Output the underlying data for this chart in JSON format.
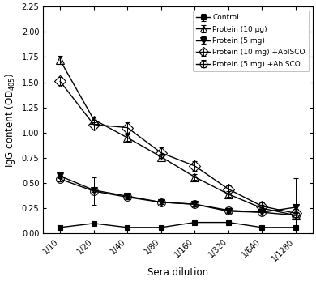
{
  "x_labels": [
    "1/10",
    "1/20",
    "1/40",
    "1/80",
    "1/160",
    "1/320",
    "1/640",
    "1/1280"
  ],
  "x_values": [
    1,
    2,
    3,
    4,
    5,
    6,
    7,
    8
  ],
  "series": {
    "Control": {
      "y": [
        0.06,
        0.1,
        0.06,
        0.06,
        0.11,
        0.11,
        0.06,
        0.06
      ],
      "yerr": [
        0.01,
        0.01,
        0.01,
        0.01,
        0.01,
        0.01,
        0.01,
        0.01
      ],
      "marker": "s",
      "markersize": 5,
      "color": "#000000",
      "fillstyle": "full",
      "linestyle": "-",
      "linewidth": 1.0,
      "label": "Control"
    },
    "Protein10ug": {
      "y": [
        1.72,
        1.13,
        0.95,
        0.76,
        0.56,
        0.39,
        0.25,
        0.18
      ],
      "yerr": [
        0.04,
        0.03,
        0.03,
        0.03,
        0.03,
        0.03,
        0.03,
        0.03
      ],
      "marker": "^",
      "markersize": 7,
      "color": "#000000",
      "fillstyle": "none",
      "linestyle": "-",
      "linewidth": 1.0,
      "label": "Protein (10 μg)"
    },
    "Protein5mg": {
      "y": [
        0.57,
        0.43,
        0.37,
        0.31,
        0.29,
        0.22,
        0.21,
        0.26
      ],
      "yerr": [
        0.02,
        0.02,
        0.02,
        0.02,
        0.02,
        0.02,
        0.02,
        0.02
      ],
      "marker": "v",
      "markersize": 6,
      "color": "#000000",
      "fillstyle": "full",
      "linestyle": "-",
      "linewidth": 1.0,
      "label": "Protein (5 mg)"
    },
    "Protein10mgAbISCO": {
      "y": [
        1.51,
        1.08,
        1.05,
        0.8,
        0.67,
        0.44,
        0.27,
        0.2
      ],
      "yerr": [
        0.04,
        0.05,
        0.05,
        0.05,
        0.05,
        0.04,
        0.04,
        0.35
      ],
      "marker": "D",
      "markersize": 7,
      "color": "#000000",
      "fillstyle": "none",
      "linestyle": "-",
      "linewidth": 1.0,
      "label": "Protein (10 mg) +AbISCO"
    },
    "Protein5mgAbISCO": {
      "y": [
        0.54,
        0.42,
        0.36,
        0.31,
        0.29,
        0.23,
        0.21,
        0.18
      ],
      "yerr": [
        0.02,
        0.14,
        0.02,
        0.02,
        0.02,
        0.02,
        0.02,
        0.02
      ],
      "marker": "o",
      "markersize": 7,
      "color": "#000000",
      "fillstyle": "none",
      "linestyle": "-",
      "linewidth": 1.0,
      "label": "Protein (5 mg) +AbISCO"
    }
  },
  "ylabel": "IgG content (OD$_{405}$)",
  "xlabel": "Sera dilution",
  "ylim": [
    0.0,
    2.25
  ],
  "yticks": [
    0.0,
    0.25,
    0.5,
    0.75,
    1.0,
    1.25,
    1.5,
    1.75,
    2.0,
    2.25
  ],
  "ytick_labels": [
    "0.00",
    "0.25",
    "0.50",
    "0.75",
    "1.00",
    "1.25",
    "1.50",
    "1.75",
    "2.00",
    "2.25"
  ],
  "background_color": "#ffffff",
  "legend_fontsize": 6.5,
  "axis_fontsize": 8.5,
  "tick_fontsize": 7.0
}
